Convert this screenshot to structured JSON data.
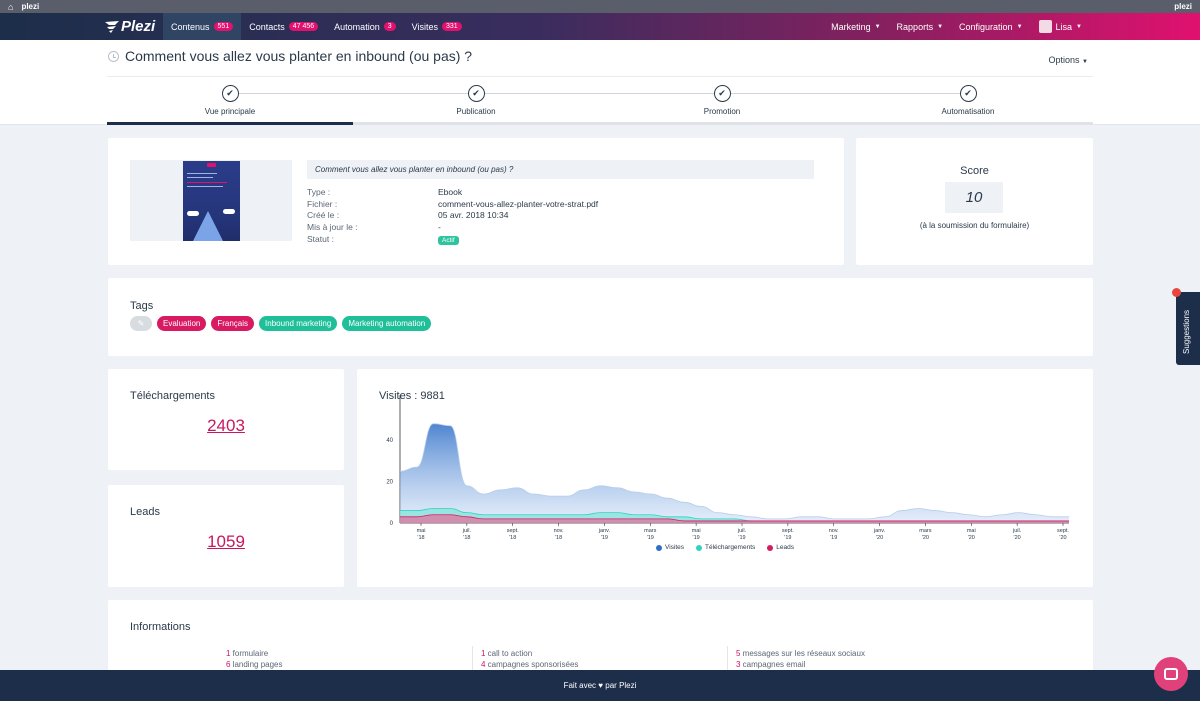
{
  "topbar": {
    "home_icon": "home-icon",
    "left_label": "plezi",
    "right_label": "plezi"
  },
  "nav": {
    "logo_text": "Plezi",
    "items": [
      {
        "label": "Contenus",
        "badge": "551",
        "active": true
      },
      {
        "label": "Contacts",
        "badge": "47 456",
        "active": false
      },
      {
        "label": "Automation",
        "badge": "3",
        "active": false
      },
      {
        "label": "Visites",
        "badge": "331",
        "active": false
      }
    ],
    "right_items": [
      {
        "label": "Marketing"
      },
      {
        "label": "Rapports"
      },
      {
        "label": "Configuration"
      }
    ],
    "user": "Lisa"
  },
  "header": {
    "title": "Comment vous allez vous planter en inbound (ou pas) ?",
    "options_label": "Options"
  },
  "steps": [
    {
      "label": "Vue principale",
      "active": true
    },
    {
      "label": "Publication",
      "active": false
    },
    {
      "label": "Promotion",
      "active": false
    },
    {
      "label": "Automatisation",
      "active": false
    }
  ],
  "content": {
    "name": "Comment vous allez vous planter en inbound (ou pas) ?",
    "type_label": "Type :",
    "type_value": "Ebook",
    "file_label": "Fichier :",
    "file_value": "comment-vous-allez-planter-votre-strat.pdf",
    "created_label": "Créé le :",
    "created_value": "05 avr. 2018 10:34",
    "updated_label": "Mis à jour le :",
    "updated_value": "-",
    "status_label": "Statut :",
    "status_value": "Actif"
  },
  "score": {
    "label": "Score",
    "value": "10",
    "caption": "(à la soumission du formulaire)"
  },
  "tags": {
    "title": "Tags",
    "items": [
      {
        "label": "Evaluation",
        "color": "#d81a63"
      },
      {
        "label": "Français",
        "color": "#d81a63"
      },
      {
        "label": "Inbound marketing",
        "color": "#1fbf99"
      },
      {
        "label": "Marketing automation",
        "color": "#1fbf99"
      }
    ]
  },
  "stats": {
    "downloads_label": "Téléchargements",
    "downloads_value": "2403",
    "leads_label": "Leads",
    "leads_value": "1059"
  },
  "chart_data": {
    "type": "area",
    "title": "Visites : 9881",
    "y_ticks": [
      "0",
      "20",
      "40"
    ],
    "ylim": [
      0,
      58
    ],
    "x_ticks": [
      [
        "mai",
        "'18"
      ],
      [
        "juil.",
        "'18"
      ],
      [
        "sept.",
        "'18"
      ],
      [
        "nov.",
        "'18"
      ],
      [
        "janv.",
        "'19"
      ],
      [
        "mars",
        "'19"
      ],
      [
        "mai",
        "'19"
      ],
      [
        "juil.",
        "'19"
      ],
      [
        "sept.",
        "'19"
      ],
      [
        "nov.",
        "'19"
      ],
      [
        "janv.",
        "'20"
      ],
      [
        "mars",
        "'20"
      ],
      [
        "mai",
        "'20"
      ],
      [
        "juil.",
        "'20"
      ],
      [
        "sept.",
        "'20"
      ]
    ],
    "series": [
      {
        "name": "Visites",
        "color": "#2f6fc8",
        "values": [
          25,
          27,
          48,
          47,
          18,
          14,
          16,
          17,
          14,
          13,
          13,
          16,
          18,
          17,
          15,
          14,
          12,
          10,
          8,
          5,
          4,
          3,
          2,
          2,
          3,
          3,
          2,
          2,
          2,
          3,
          6,
          7,
          6,
          5,
          4,
          3,
          4,
          5,
          4,
          3,
          3
        ]
      },
      {
        "name": "Téléchargements",
        "color": "#2fd4c0",
        "values": [
          6,
          6,
          7,
          7,
          5,
          4,
          4,
          4,
          4,
          4,
          4,
          4,
          5,
          5,
          4,
          4,
          3,
          3,
          2,
          2,
          2,
          1,
          1,
          1,
          1,
          1,
          1,
          1,
          1,
          1,
          1,
          1,
          1,
          1,
          1,
          1,
          1,
          1,
          1,
          1,
          1
        ]
      },
      {
        "name": "Leads",
        "color": "#d81a63",
        "values": [
          3,
          3,
          4,
          4,
          3,
          2,
          2,
          2,
          2,
          2,
          2,
          2,
          2,
          2,
          2,
          2,
          2,
          1,
          1,
          1,
          1,
          1,
          1,
          1,
          1,
          1,
          1,
          1,
          1,
          1,
          1,
          1,
          1,
          1,
          1,
          1,
          1,
          1,
          1,
          1,
          1
        ]
      }
    ]
  },
  "informations": {
    "title": "Informations",
    "col1": [
      {
        "num": "1",
        "label": " formulaire"
      },
      {
        "num": "6",
        "label": " landing pages"
      }
    ],
    "col2": [
      {
        "num": "1",
        "label": " call to action"
      },
      {
        "num": "4",
        "label": " campagnes sponsorisées"
      }
    ],
    "col3": [
      {
        "num": "5",
        "label": " messages sur les réseaux sociaux"
      },
      {
        "num": "3",
        "label": " campagnes email"
      }
    ]
  },
  "footer": {
    "before": "Fait avec",
    "after": "par Plezi"
  },
  "sidebar_tab": {
    "label": "Suggestions"
  }
}
